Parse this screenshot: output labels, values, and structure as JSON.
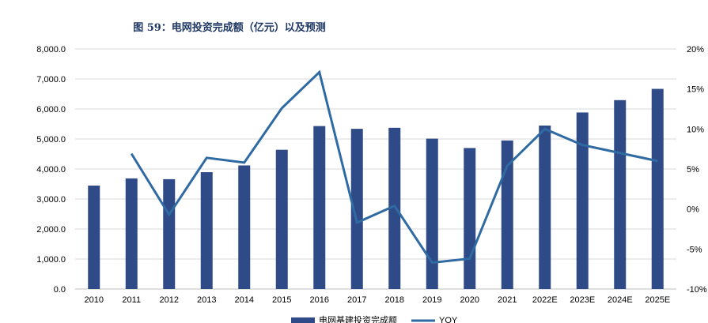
{
  "title": "图 59：电网投资完成额（亿元）以及预测",
  "chart_data": {
    "type": "bar",
    "categories": [
      "2010",
      "2011",
      "2012",
      "2013",
      "2014",
      "2015",
      "2016",
      "2017",
      "2018",
      "2019",
      "2020",
      "2021",
      "2022E",
      "2023E",
      "2024E",
      "2025E"
    ],
    "series": [
      {
        "name": "电网基建投资完成额",
        "type": "bar",
        "axis": "left",
        "color": "#2e4a87",
        "values": [
          3448,
          3687,
          3661,
          3894,
          4119,
          4640,
          5431,
          5339,
          5373,
          5012,
          4699,
          4951,
          5448,
          5883,
          6295,
          6670
        ]
      },
      {
        "name": "YOY",
        "type": "line",
        "axis": "right",
        "color": "#2f6aa3",
        "values": [
          null,
          6.9,
          -0.7,
          6.4,
          5.8,
          12.6,
          17.1,
          -1.7,
          0.4,
          -6.7,
          -6.2,
          5.4,
          10.0,
          8.0,
          7.0,
          6.0
        ]
      }
    ],
    "y_left": {
      "ylim": [
        0,
        8000
      ],
      "ticks": [
        "0.0",
        "1,000.0",
        "2,000.0",
        "3,000.0",
        "4,000.0",
        "5,000.0",
        "6,000.0",
        "7,000.0",
        "8,000.0"
      ]
    },
    "y_right": {
      "ylim": [
        -10,
        20
      ],
      "ticks": [
        "-10%",
        "-5%",
        "0%",
        "5%",
        "10%",
        "15%",
        "20%"
      ]
    },
    "grid": "horizontal",
    "legend": "bottom"
  }
}
